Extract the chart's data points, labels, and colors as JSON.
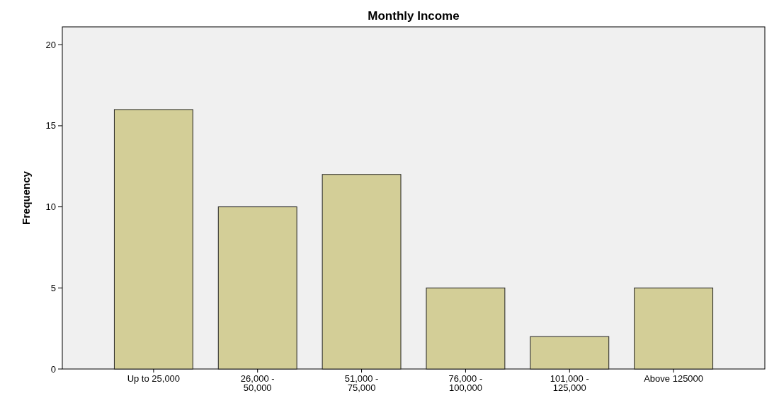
{
  "chart_data": {
    "type": "bar",
    "title": "Monthly Income",
    "ylabel": "Frequency",
    "categories": [
      "Up to 25,000",
      "26,000 -\n50,000",
      "51,000 -\n75,000",
      "76,000 -\n100,000",
      "101,000 -\n125,000",
      "Above 125000"
    ],
    "values": [
      16,
      10,
      12,
      5,
      2,
      5
    ],
    "color": "#d3ce97",
    "ylim": [
      0,
      21.1
    ],
    "yticks": [
      0,
      5,
      10,
      15,
      20
    ]
  }
}
